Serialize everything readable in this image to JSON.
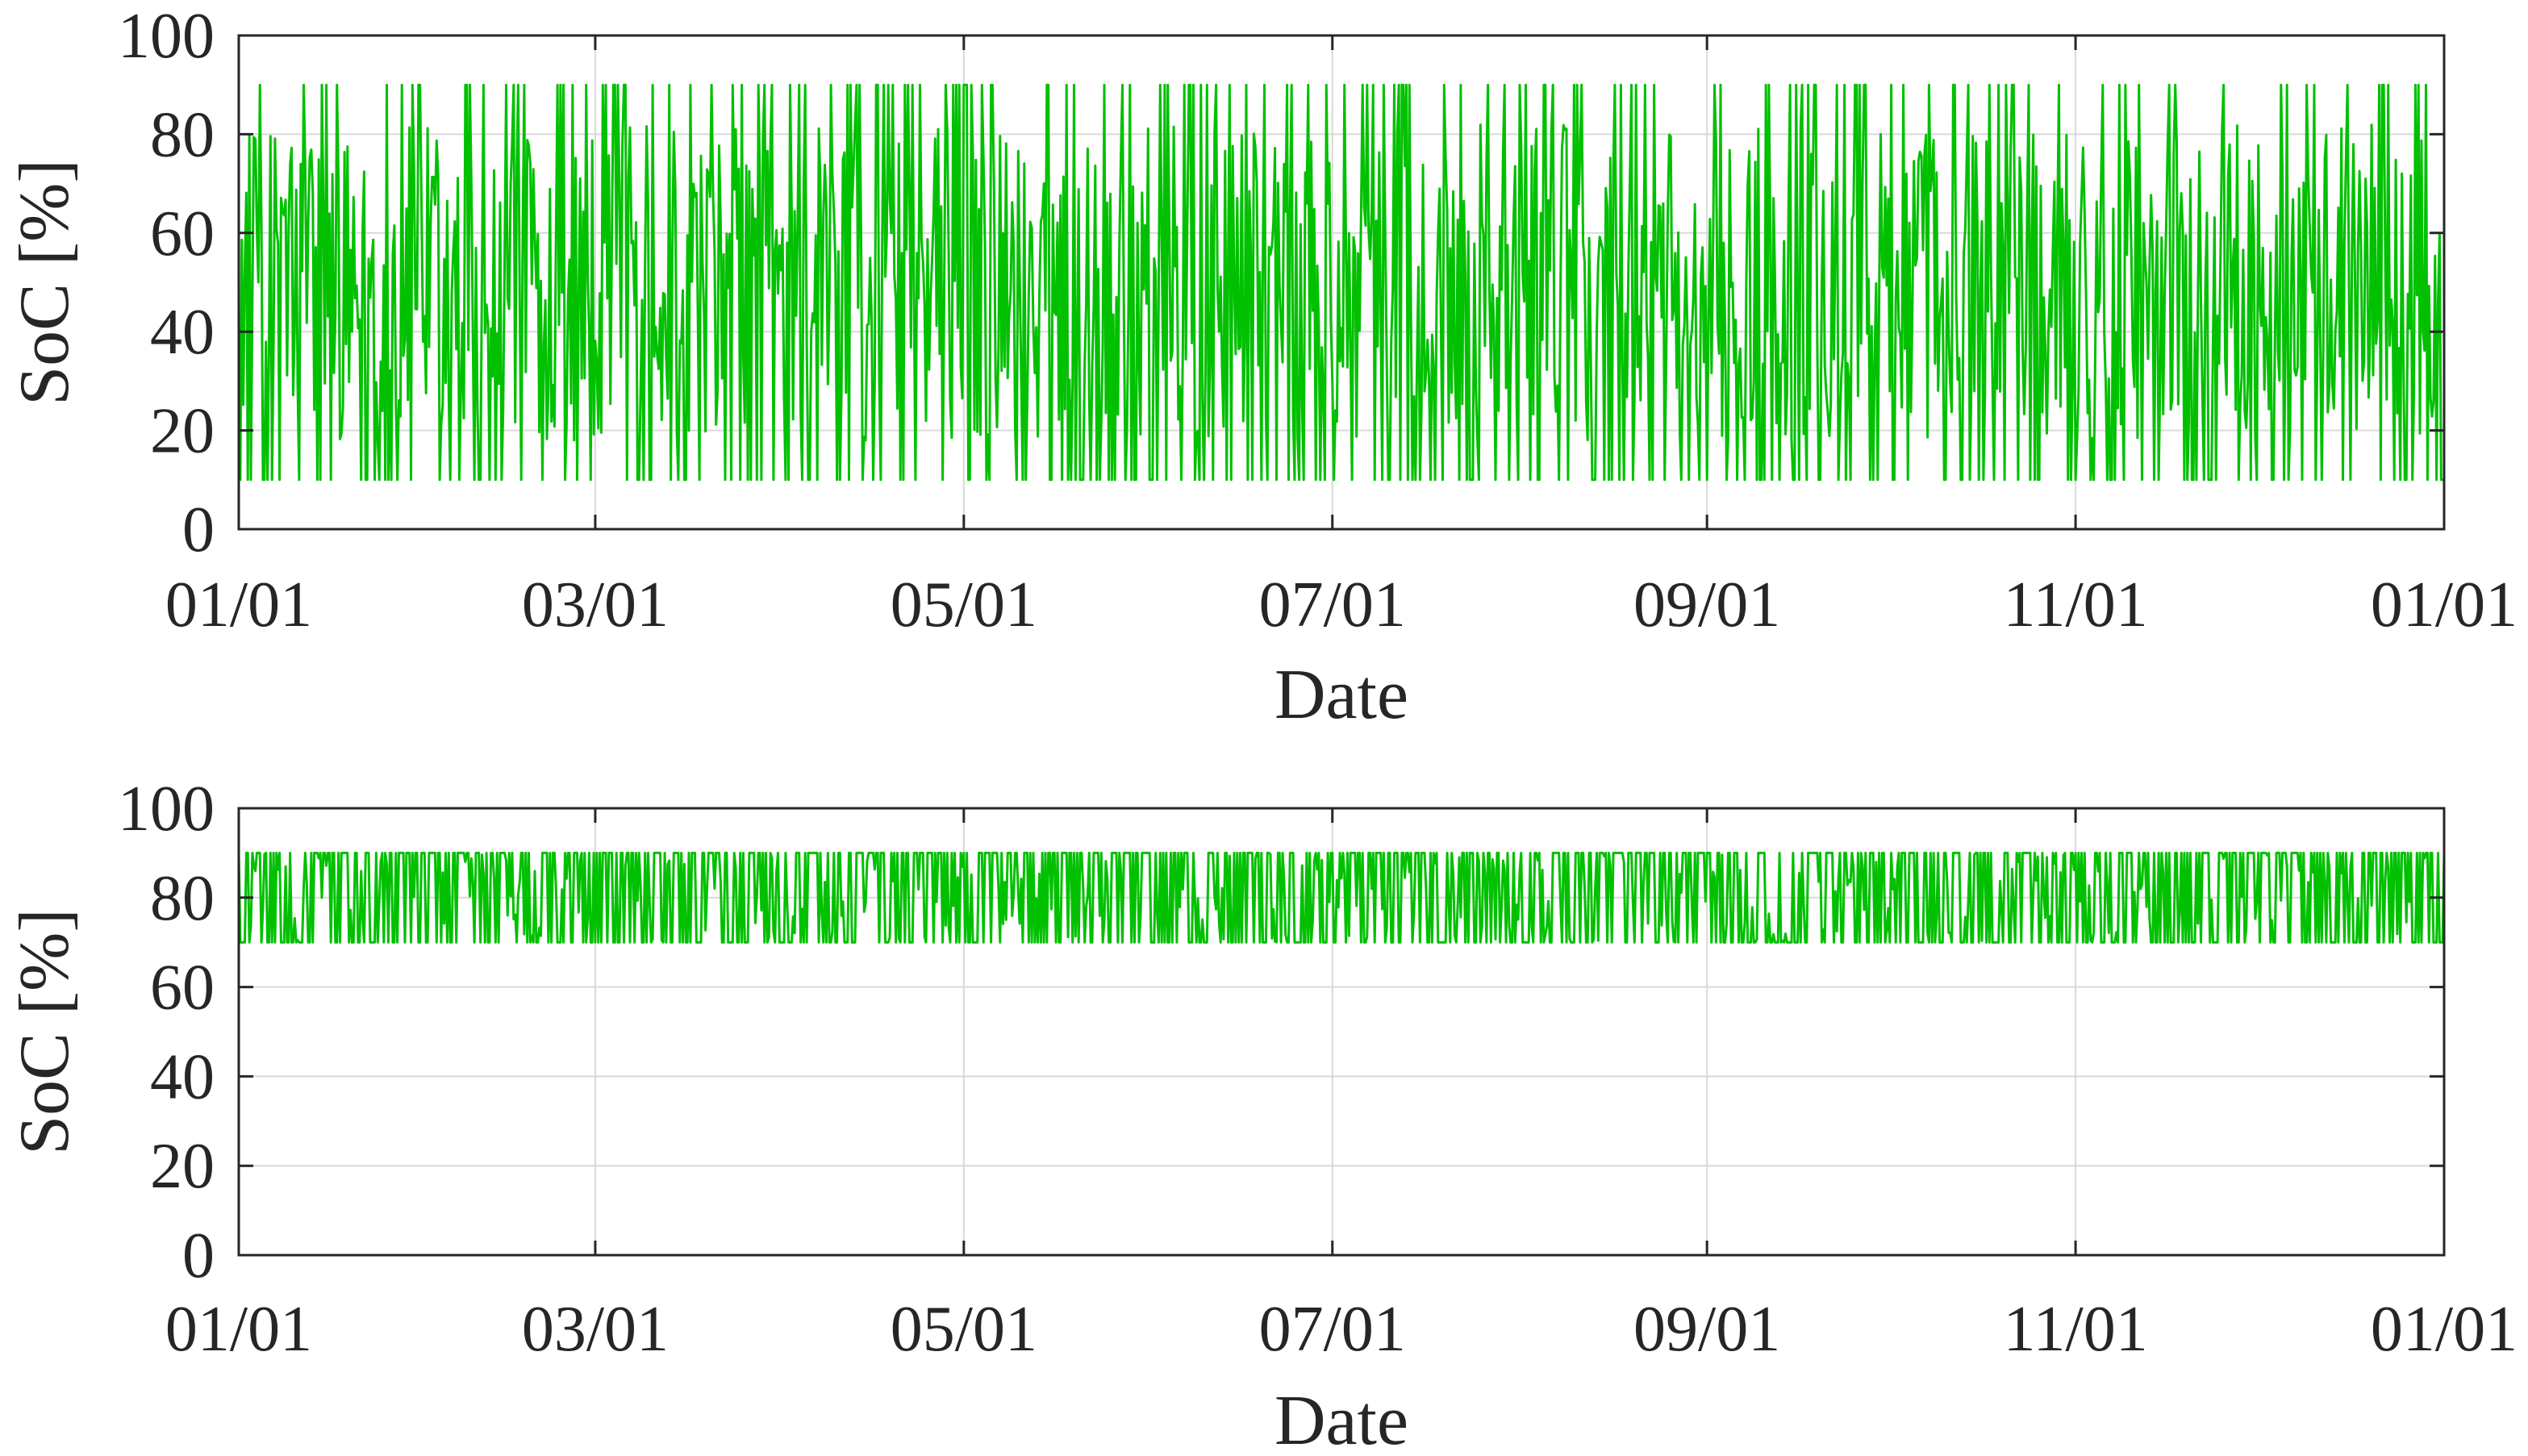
{
  "chart_data": [
    {
      "type": "line",
      "title": "",
      "xlabel": "Date",
      "ylabel": "SoC [%]",
      "x_ticks": [
        "01/01",
        "03/01",
        "05/01",
        "07/01",
        "09/01",
        "11/01",
        "01/01"
      ],
      "x_tick_days": [
        0,
        59,
        120,
        181,
        243,
        304,
        365
      ],
      "xlim_days": [
        0,
        365
      ],
      "y_ticks": [
        "0",
        "20",
        "40",
        "60",
        "80",
        "100"
      ],
      "ylim": [
        0,
        100
      ],
      "grid": true,
      "series": [
        {
          "color": "#00c000",
          "description_of_values": "daily min/max SoC envelope, min about 10 %, max about 90 %",
          "x_days": [
            0,
            15,
            30,
            45,
            59,
            75,
            90,
            105,
            120,
            135,
            150,
            165,
            181,
            195,
            210,
            225,
            243,
            260,
            275,
            290,
            304,
            320,
            335,
            350,
            365
          ],
          "min": [
            10,
            10,
            10,
            10,
            10,
            10,
            10,
            10,
            10,
            10,
            10,
            10,
            10,
            10,
            10,
            10,
            10,
            10,
            10,
            10,
            10,
            10,
            10,
            10,
            10
          ],
          "max": [
            90,
            90,
            90,
            90,
            90,
            90,
            90,
            90,
            90,
            90,
            90,
            90,
            90,
            90,
            90,
            90,
            90,
            90,
            90,
            90,
            90,
            90,
            90,
            90,
            90
          ]
        }
      ]
    },
    {
      "type": "line",
      "title": "",
      "xlabel": "Date",
      "ylabel": "SoC [%]",
      "x_ticks": [
        "01/01",
        "03/01",
        "05/01",
        "07/01",
        "09/01",
        "11/01",
        "01/01"
      ],
      "x_tick_days": [
        0,
        59,
        120,
        181,
        243,
        304,
        365
      ],
      "xlim_days": [
        0,
        365
      ],
      "y_ticks": [
        "0",
        "20",
        "40",
        "60",
        "80",
        "100"
      ],
      "ylim": [
        0,
        100
      ],
      "grid": true,
      "series": [
        {
          "color": "#00c000",
          "description_of_values": "SoC oscillating between about 70 % and 90 %",
          "x_days": [
            0,
            15,
            30,
            45,
            59,
            75,
            90,
            105,
            120,
            135,
            150,
            165,
            181,
            195,
            210,
            225,
            243,
            260,
            275,
            290,
            304,
            320,
            335,
            350,
            365
          ],
          "min": [
            70,
            70,
            70,
            70,
            70,
            70,
            70,
            70,
            70,
            70,
            70,
            70,
            70,
            70,
            70,
            70,
            70,
            70,
            70,
            70,
            70,
            70,
            70,
            70,
            70
          ],
          "max": [
            90,
            90,
            90,
            90,
            90,
            90,
            90,
            90,
            90,
            90,
            90,
            90,
            90,
            90,
            90,
            90,
            90,
            90,
            90,
            90,
            90,
            90,
            90,
            90,
            90
          ]
        }
      ]
    }
  ]
}
